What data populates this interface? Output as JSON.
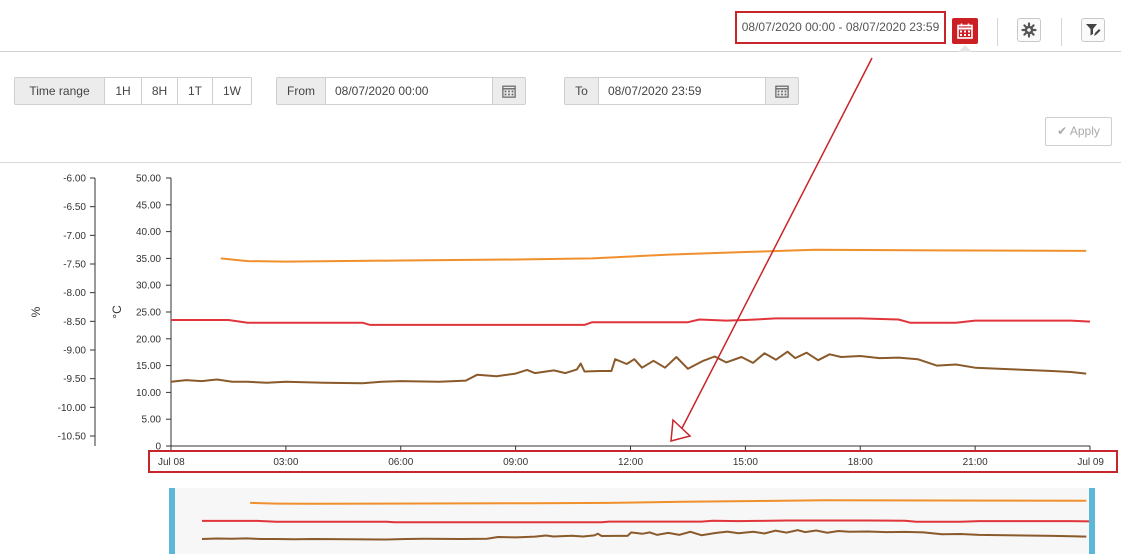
{
  "header": {
    "date_range": "08/07/2020 00:00 - 08/07/2020 23:59",
    "calendar_icon": "calendar-icon",
    "settings_icon": "gear-icon",
    "filter_icon": "filter-edit-icon",
    "accent_color": "#cc1f24"
  },
  "controls": {
    "time_range_label": "Time range",
    "presets": [
      "1H",
      "8H",
      "1T",
      "1W"
    ],
    "from_label": "From",
    "from_value": "08/07/2020 00:00",
    "to_label": "To",
    "to_value": "08/07/2020 23:59",
    "apply_label": "Apply"
  },
  "chart_data": {
    "type": "line",
    "left_axis": {
      "label": "%",
      "range": [
        -10.5,
        -6.0
      ],
      "ticks": [
        "-6.00",
        "-6.50",
        "-7.00",
        "-7.50",
        "-8.00",
        "-8.50",
        "-9.00",
        "-9.50",
        "-10.00",
        "-10.50"
      ]
    },
    "right_axis": {
      "label": "°C",
      "range": [
        0,
        50
      ],
      "ticks": [
        "50.00",
        "45.00",
        "40.00",
        "35.00",
        "30.00",
        "25.00",
        "20.00",
        "15.00",
        "10.00",
        "5.00",
        "0"
      ]
    },
    "x_ticks": [
      "Jul 08",
      "03:00",
      "06:00",
      "09:00",
      "12:00",
      "15:00",
      "18:00",
      "21:00",
      "Jul 09"
    ],
    "x_range_hours": [
      0,
      24
    ],
    "series": [
      {
        "color": "#f0902d",
        "points": [
          [
            1.3,
            35.0
          ],
          [
            2.0,
            34.5
          ],
          [
            3.0,
            34.4
          ],
          [
            6.0,
            34.6
          ],
          [
            9.0,
            34.8
          ],
          [
            11.0,
            35.0
          ],
          [
            13.0,
            35.7
          ],
          [
            15.0,
            36.2
          ],
          [
            16.8,
            36.6
          ],
          [
            20.0,
            36.5
          ],
          [
            23.9,
            36.4
          ]
        ]
      },
      {
        "color": "#e0353b",
        "points": [
          [
            0,
            23.5
          ],
          [
            1.5,
            23.5
          ],
          [
            2.0,
            23.0
          ],
          [
            5.0,
            23.0
          ],
          [
            5.2,
            22.6
          ],
          [
            10.8,
            22.6
          ],
          [
            11.0,
            23.1
          ],
          [
            13.5,
            23.1
          ],
          [
            13.8,
            23.6
          ],
          [
            14.5,
            23.4
          ],
          [
            15.0,
            23.5
          ],
          [
            15.8,
            23.8
          ],
          [
            18.0,
            23.8
          ],
          [
            19.0,
            23.6
          ],
          [
            19.3,
            23.0
          ],
          [
            20.5,
            23.0
          ],
          [
            21.0,
            23.4
          ],
          [
            23.5,
            23.4
          ],
          [
            24.0,
            23.2
          ]
        ]
      },
      {
        "color": "#8a5a2b",
        "points": [
          [
            0,
            12.0
          ],
          [
            0.4,
            12.3
          ],
          [
            0.8,
            12.1
          ],
          [
            1.2,
            12.4
          ],
          [
            1.6,
            12.0
          ],
          [
            2.0,
            12.0
          ],
          [
            2.5,
            11.8
          ],
          [
            3.0,
            12.0
          ],
          [
            4.0,
            11.8
          ],
          [
            5.0,
            11.7
          ],
          [
            5.5,
            12.0
          ],
          [
            6.0,
            12.1
          ],
          [
            7.0,
            12.0
          ],
          [
            7.7,
            12.2
          ],
          [
            8.0,
            13.3
          ],
          [
            8.5,
            13.0
          ],
          [
            9.0,
            13.5
          ],
          [
            9.3,
            14.2
          ],
          [
            9.5,
            13.6
          ],
          [
            10.0,
            14.1
          ],
          [
            10.3,
            13.6
          ],
          [
            10.6,
            14.3
          ],
          [
            10.7,
            15.4
          ],
          [
            10.8,
            13.9
          ],
          [
            11.2,
            14.0
          ],
          [
            11.5,
            14.0
          ],
          [
            11.6,
            16.2
          ],
          [
            11.9,
            15.3
          ],
          [
            12.1,
            16.2
          ],
          [
            12.3,
            14.6
          ],
          [
            12.6,
            15.9
          ],
          [
            12.9,
            14.6
          ],
          [
            13.2,
            16.6
          ],
          [
            13.5,
            14.4
          ],
          [
            13.9,
            15.9
          ],
          [
            14.2,
            16.7
          ],
          [
            14.5,
            15.6
          ],
          [
            14.9,
            16.6
          ],
          [
            15.2,
            15.5
          ],
          [
            15.5,
            17.3
          ],
          [
            15.8,
            16.1
          ],
          [
            16.1,
            17.6
          ],
          [
            16.3,
            16.4
          ],
          [
            16.6,
            17.4
          ],
          [
            16.9,
            16.0
          ],
          [
            17.2,
            17.1
          ],
          [
            17.5,
            16.6
          ],
          [
            18.0,
            16.8
          ],
          [
            18.5,
            16.4
          ],
          [
            19.0,
            16.5
          ],
          [
            19.5,
            16.2
          ],
          [
            20.0,
            15.0
          ],
          [
            20.5,
            15.2
          ],
          [
            21.0,
            14.6
          ],
          [
            22.0,
            14.3
          ],
          [
            23.0,
            14.0
          ],
          [
            23.5,
            13.8
          ],
          [
            23.9,
            13.5
          ]
        ]
      }
    ],
    "navigator_colors": [
      "#f0902d",
      "#e0353b",
      "#8a5a2b",
      "#5bb8d6"
    ]
  }
}
